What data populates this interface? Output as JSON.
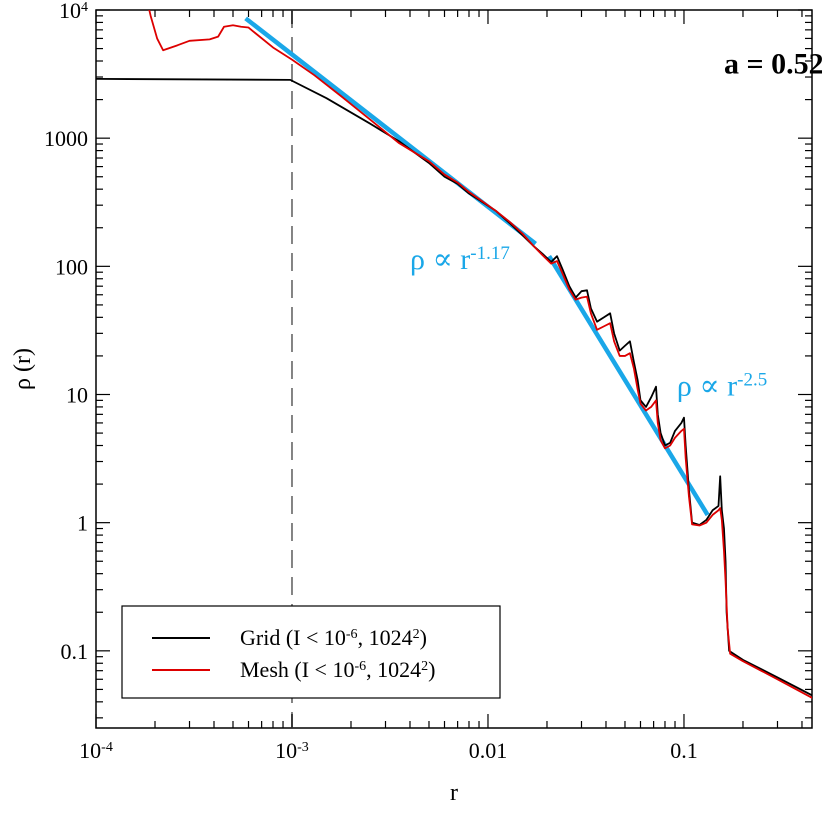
{
  "chart_data": {
    "type": "line",
    "xlabel": "r",
    "ylabel": "ρ (r)",
    "xscale": "log",
    "yscale": "log",
    "xlim": [
      0.0001,
      0.45
    ],
    "ylim": [
      0.025,
      10000
    ],
    "grid": false,
    "legend_position": "bottom-left",
    "x_ticks": [
      {
        "value": 0.0001,
        "base": "10",
        "exp": "-4"
      },
      {
        "value": 0.001,
        "base": "10",
        "exp": "-3"
      },
      {
        "value": 0.01,
        "base": "0.01",
        "exp": ""
      },
      {
        "value": 0.1,
        "base": "0.1",
        "exp": ""
      }
    ],
    "y_ticks": [
      {
        "value": 0.1,
        "base": "0.1",
        "exp": ""
      },
      {
        "value": 1,
        "base": "1",
        "exp": ""
      },
      {
        "value": 10,
        "base": "10",
        "exp": ""
      },
      {
        "value": 100,
        "base": "100",
        "exp": ""
      },
      {
        "value": 1000,
        "base": "1000",
        "exp": ""
      },
      {
        "value": 10000,
        "base": "10",
        "exp": "4"
      }
    ],
    "reference_line": {
      "x": 0.001,
      "style": "dashed",
      "color": "#777777"
    },
    "series": [
      {
        "name": "Grid",
        "legend": {
          "pre": "Grid (I < 10",
          "sup1": "-6",
          "mid": ", 1024",
          "sup2": "2",
          "post": ")"
        },
        "color": "#000000",
        "points": [
          [
            0.0001,
            2900
          ],
          [
            0.00098,
            2850
          ],
          [
            0.0015,
            2050
          ],
          [
            0.0025,
            1300
          ],
          [
            0.0035,
            950
          ],
          [
            0.005,
            640
          ],
          [
            0.006,
            500
          ],
          [
            0.007,
            440
          ],
          [
            0.008,
            370
          ],
          [
            0.009,
            330
          ],
          [
            0.011,
            270
          ],
          [
            0.013,
            215
          ],
          [
            0.015,
            175
          ],
          [
            0.017,
            145
          ],
          [
            0.019,
            125
          ],
          [
            0.021,
            108
          ],
          [
            0.0225,
            120
          ],
          [
            0.024,
            95
          ],
          [
            0.026,
            70
          ],
          [
            0.028,
            57
          ],
          [
            0.03,
            64
          ],
          [
            0.032,
            65
          ],
          [
            0.0335,
            47
          ],
          [
            0.036,
            37
          ],
          [
            0.039,
            40
          ],
          [
            0.042,
            43
          ],
          [
            0.044,
            30
          ],
          [
            0.047,
            22
          ],
          [
            0.05,
            24
          ],
          [
            0.053,
            26
          ],
          [
            0.0555,
            18
          ],
          [
            0.058,
            13
          ],
          [
            0.06,
            9
          ],
          [
            0.064,
            8
          ],
          [
            0.068,
            9.5
          ],
          [
            0.072,
            11.5
          ],
          [
            0.0735,
            7
          ],
          [
            0.076,
            5
          ],
          [
            0.08,
            4
          ],
          [
            0.085,
            4.2
          ],
          [
            0.09,
            5.2
          ],
          [
            0.097,
            6
          ],
          [
            0.1,
            6.6
          ],
          [
            0.102,
            4
          ],
          [
            0.106,
            1.8
          ],
          [
            0.11,
            1
          ],
          [
            0.12,
            0.96
          ],
          [
            0.13,
            1.05
          ],
          [
            0.14,
            1.25
          ],
          [
            0.15,
            1.35
          ],
          [
            0.153,
            2.3
          ],
          [
            0.156,
            1.25
          ],
          [
            0.16,
            0.9
          ],
          [
            0.163,
            0.5
          ],
          [
            0.165,
            0.2
          ],
          [
            0.17,
            0.1
          ],
          [
            0.2,
            0.085
          ],
          [
            0.3,
            0.062
          ],
          [
            0.45,
            0.045
          ]
        ]
      },
      {
        "name": "Mesh",
        "legend": {
          "pre": "Mesh (I < 10",
          "sup1": "-6",
          "mid": ", 1024",
          "sup2": "2",
          "post": ")"
        },
        "color": "#dd0000",
        "points": [
          [
            0.000182,
            12000
          ],
          [
            0.00019,
            9000
          ],
          [
            0.000205,
            6000
          ],
          [
            0.00022,
            4850
          ],
          [
            0.00026,
            5300
          ],
          [
            0.0003,
            5750
          ],
          [
            0.00038,
            5900
          ],
          [
            0.00042,
            6200
          ],
          [
            0.00045,
            7400
          ],
          [
            0.0005,
            7600
          ],
          [
            0.00055,
            7400
          ],
          [
            0.0006,
            7300
          ],
          [
            0.00065,
            6600
          ],
          [
            0.0008,
            5100
          ],
          [
            0.001,
            4100
          ],
          [
            0.0013,
            3100
          ],
          [
            0.0018,
            2100
          ],
          [
            0.0025,
            1400
          ],
          [
            0.0035,
            920
          ],
          [
            0.005,
            660
          ],
          [
            0.006,
            520
          ],
          [
            0.007,
            450
          ],
          [
            0.008,
            380
          ],
          [
            0.009,
            335
          ],
          [
            0.011,
            270
          ],
          [
            0.013,
            220
          ],
          [
            0.015,
            180
          ],
          [
            0.017,
            145
          ],
          [
            0.019,
            122
          ],
          [
            0.021,
            105
          ],
          [
            0.0225,
            110
          ],
          [
            0.024,
            88
          ],
          [
            0.026,
            66
          ],
          [
            0.028,
            55
          ],
          [
            0.03,
            57
          ],
          [
            0.032,
            58
          ],
          [
            0.0335,
            43
          ],
          [
            0.036,
            32
          ],
          [
            0.039,
            34
          ],
          [
            0.042,
            36
          ],
          [
            0.044,
            26
          ],
          [
            0.047,
            20
          ],
          [
            0.05,
            20
          ],
          [
            0.053,
            21
          ],
          [
            0.0555,
            16
          ],
          [
            0.058,
            11
          ],
          [
            0.06,
            8.5
          ],
          [
            0.064,
            7.5
          ],
          [
            0.068,
            8
          ],
          [
            0.072,
            9
          ],
          [
            0.0735,
            6
          ],
          [
            0.076,
            4.4
          ],
          [
            0.08,
            3.8
          ],
          [
            0.085,
            4
          ],
          [
            0.09,
            4.6
          ],
          [
            0.097,
            5.2
          ],
          [
            0.1,
            5.4
          ],
          [
            0.102,
            3.2
          ],
          [
            0.106,
            1.6
          ],
          [
            0.11,
            0.97
          ],
          [
            0.12,
            0.95
          ],
          [
            0.13,
            1
          ],
          [
            0.14,
            1.15
          ],
          [
            0.15,
            1.25
          ],
          [
            0.153,
            1.3
          ],
          [
            0.156,
            1.05
          ],
          [
            0.16,
            0.6
          ],
          [
            0.163,
            0.35
          ],
          [
            0.167,
            0.15
          ],
          [
            0.172,
            0.095
          ],
          [
            0.2,
            0.083
          ],
          [
            0.3,
            0.06
          ],
          [
            0.45,
            0.043
          ]
        ]
      },
      {
        "name": "",
        "color": "#1aa7e8",
        "role": "fit",
        "points": [
          [
            0.00058,
            8600
          ],
          [
            0.0175,
            150
          ]
        ]
      },
      {
        "name": "",
        "color": "#1aa7e8",
        "role": "fit",
        "points": [
          [
            0.0205,
            120
          ],
          [
            0.132,
            1.15
          ]
        ]
      }
    ],
    "annotations": [
      {
        "id": "fit1",
        "pre": "ρ ∝ r",
        "sup": "-1.17",
        "color": "#1aa7e8",
        "x": 0.004,
        "y": 95
      },
      {
        "id": "fit2",
        "pre": "ρ ∝ r",
        "sup": "-2.5",
        "color": "#1aa7e8",
        "x": 0.092,
        "y": 9.8
      },
      {
        "id": "scale",
        "pre": "a = 0.52",
        "sup": "",
        "color": "#000000",
        "x": 0.16,
        "y": 3200
      }
    ]
  }
}
